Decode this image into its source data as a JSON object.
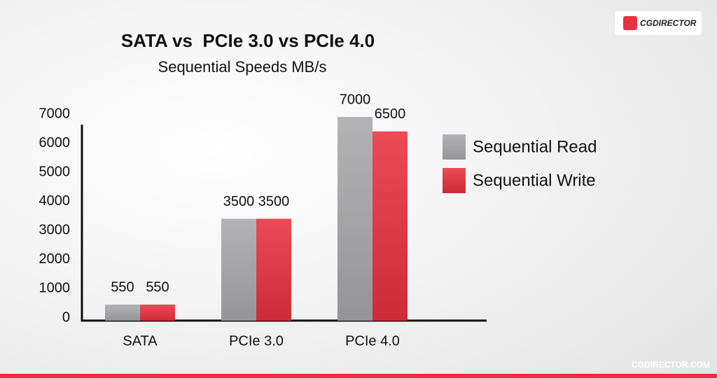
{
  "chart_data": {
    "type": "bar",
    "title": "SATA vs  PCIe 3.0 vs PCIe 4.0",
    "subtitle": "Sequential Speeds MB/s",
    "logo": "CGDIRECTOR",
    "footer": "CGDIRECTOR.COM",
    "categories": [
      "SATA",
      "PCIe 3.0",
      "PCIe 4.0"
    ],
    "series": [
      {
        "name": "Sequential Read",
        "color": "#a9a9ad",
        "values": [
          550,
          3500,
          7000
        ]
      },
      {
        "name": "Sequential Write",
        "color": "#e8323f",
        "values": [
          550,
          3500,
          6500
        ]
      }
    ],
    "ylim": [
      0,
      7000
    ],
    "yticks": [
      0,
      1000,
      2000,
      3000,
      4000,
      5000,
      6000,
      7000
    ],
    "grid": false,
    "legend": "right"
  }
}
